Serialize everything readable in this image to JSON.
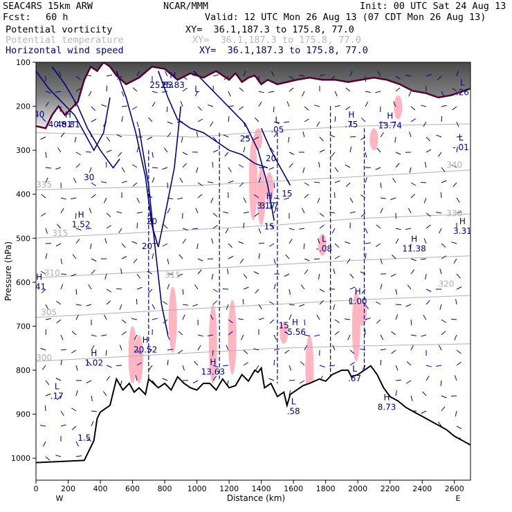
{
  "header": {
    "model": "SEAC4RS 15km ARW",
    "org": "NCAR/MMM",
    "init": "Init: 00 UTC Sat 24 Aug 13",
    "fcst_label": "Fcst:",
    "fcst_value": "60 h",
    "valid": "Valid: 12 UTC Mon 26 Aug 13 (07 CDT Mon 26 Aug 13)"
  },
  "fields": [
    {
      "name": "Potential vorticity",
      "xy": "XY=  36.1,187.3 to 175.8, 77.0"
    },
    {
      "name": "Potential temperature",
      "xy": "XY=  36.1,187.3 to 175.8, 77.0"
    },
    {
      "name": "Horizontal wind speed",
      "xy": "XY=  36.1,187.3 to 175.8, 77.0"
    }
  ],
  "colors": {
    "pv_fill": "#ffb6c1",
    "theta": "#b0b0b0",
    "wind_speed": "#000080",
    "vectors": "#00008b",
    "tropopause": "#550033",
    "terrain": "#000000",
    "stratosphere_dark": "#303030"
  },
  "chart_data": {
    "type": "line",
    "title": "",
    "xlabel": "Distance (km)",
    "ylabel": "Pressure (hPa)",
    "xlim": [
      0,
      2700
    ],
    "ylim": [
      1050,
      100
    ],
    "x_ticks": [
      0,
      200,
      400,
      600,
      800,
      1000,
      1200,
      1400,
      1600,
      1800,
      2000,
      2200,
      2400,
      2600
    ],
    "x_tick_labels": [
      "0",
      "200",
      "400",
      "600",
      "800",
      "1000",
      "1200",
      "1400",
      "1600",
      "1800",
      "2000",
      "2200",
      "2400",
      "2600"
    ],
    "y_ticks": [
      100,
      200,
      300,
      400,
      500,
      600,
      700,
      800,
      900,
      1000
    ],
    "y_tick_labels": [
      "100",
      "200",
      "300",
      "400",
      "500",
      "600",
      "700",
      "800",
      "900",
      "1000"
    ],
    "x_end_labels": {
      "left": "W",
      "right": "E"
    },
    "terrain": {
      "x": [
        0,
        300,
        360,
        380,
        400,
        460,
        500,
        540,
        580,
        610,
        640,
        680,
        700,
        760,
        800,
        840,
        880,
        920,
        960,
        1000,
        1040,
        1080,
        1120,
        1160,
        1200,
        1240,
        1280,
        1320,
        1360,
        1380,
        1400,
        1420,
        1460,
        1500,
        1540,
        1560,
        1580,
        1620,
        1660,
        1700,
        1760,
        1800,
        1840,
        1900,
        1940,
        1960,
        2000,
        2040,
        2080,
        2120,
        2160,
        2200,
        2250,
        2300,
        2350,
        2400,
        2450,
        2500,
        2550,
        2600,
        2650,
        2700
      ],
      "y": [
        1010,
        1005,
        960,
        910,
        895,
        880,
        820,
        845,
        830,
        850,
        840,
        855,
        820,
        840,
        830,
        845,
        815,
        830,
        840,
        845,
        830,
        830,
        845,
        820,
        840,
        835,
        810,
        825,
        800,
        805,
        795,
        840,
        830,
        860,
        850,
        880,
        855,
        845,
        835,
        830,
        820,
        825,
        810,
        800,
        800,
        815,
        810,
        800,
        790,
        810,
        840,
        860,
        870,
        885,
        895,
        905,
        915,
        925,
        935,
        950,
        960,
        970
      ]
    },
    "tropopause": {
      "x": [
        0,
        60,
        100,
        140,
        180,
        220,
        260,
        300,
        340,
        380,
        420,
        460,
        500,
        560,
        640,
        720,
        800,
        880,
        960,
        1040,
        1120,
        1200,
        1240,
        1280,
        1320,
        1360,
        1400,
        1440,
        1500,
        1560,
        1620,
        1700,
        1780,
        1860,
        1940,
        2020,
        2100,
        2180,
        2260,
        2340,
        2420,
        2500,
        2580,
        2700
      ],
      "y": [
        245,
        250,
        220,
        200,
        220,
        205,
        190,
        140,
        110,
        120,
        100,
        110,
        130,
        150,
        135,
        110,
        115,
        140,
        125,
        135,
        120,
        140,
        125,
        145,
        135,
        130,
        150,
        140,
        150,
        145,
        140,
        135,
        140,
        140,
        145,
        140,
        135,
        140,
        150,
        165,
        170,
        180,
        175,
        160
      ]
    },
    "theta_labels": [
      {
        "text": "340",
        "x": 2600,
        "y": 340
      },
      {
        "text": "335",
        "x": 50,
        "y": 385
      },
      {
        "text": "330",
        "x": 2600,
        "y": 450
      },
      {
        "text": "320",
        "x": 2550,
        "y": 610
      },
      {
        "text": "315",
        "x": 150,
        "y": 495
      },
      {
        "text": "315",
        "x": 850,
        "y": 590
      },
      {
        "text": "310",
        "x": 100,
        "y": 585
      },
      {
        "text": "305",
        "x": 80,
        "y": 675
      },
      {
        "text": "300",
        "x": 50,
        "y": 778
      }
    ],
    "theta_levels": [
      {
        "x": [
          0,
          500,
          1000,
          1500,
          2000,
          2700
        ],
        "y": [
          780,
          770,
          760,
          750,
          745,
          740
        ]
      },
      {
        "x": [
          0,
          500,
          1000,
          1500,
          2000,
          2700
        ],
        "y": [
          680,
          670,
          660,
          650,
          640,
          630
        ]
      },
      {
        "x": [
          0,
          500,
          1000,
          1500,
          2000,
          2700
        ],
        "y": [
          590,
          580,
          570,
          560,
          550,
          540
        ]
      },
      {
        "x": [
          0,
          500,
          1000,
          1500,
          2000,
          2700
        ],
        "y": [
          500,
          490,
          480,
          470,
          455,
          445
        ]
      },
      {
        "x": [
          0,
          500,
          1000,
          1500,
          2000,
          2700
        ],
        "y": [
          390,
          385,
          380,
          370,
          360,
          345
        ]
      },
      {
        "x": [
          0,
          500,
          1000,
          1500,
          2000,
          2700
        ],
        "y": [
          260,
          265,
          270,
          255,
          245,
          240
        ]
      }
    ],
    "wind_speed_labels": [
      {
        "text": "40",
        "x": 20,
        "y": 225
      },
      {
        "text": "40.81",
        "x": 150,
        "y": 248
      },
      {
        "text": "30",
        "x": 330,
        "y": 368
      },
      {
        "text": "20",
        "x": 720,
        "y": 468
      },
      {
        "text": "20",
        "x": 690,
        "y": 525
      },
      {
        "text": "25.83",
        "x": 780,
        "y": 158
      },
      {
        "text": "25",
        "x": 1300,
        "y": 280
      },
      {
        "text": "20",
        "x": 1460,
        "y": 325
      },
      {
        "text": "15",
        "x": 1560,
        "y": 405
      },
      {
        "text": "15",
        "x": 1450,
        "y": 480
      },
      {
        "text": "3.17",
        "x": 1430,
        "y": 433
      },
      {
        "text": "15",
        "x": 1540,
        "y": 705
      }
    ],
    "extrema_labels": [
      {
        "mark": "H",
        "text": "40.81",
        "x": 200,
        "y": 248
      },
      {
        "mark": "H",
        "text": "25.83",
        "x": 850,
        "y": 158
      },
      {
        "mark": "L",
        "text": "",
        "x": 1000,
        "y": 190
      },
      {
        "mark": "L",
        "text": ".05",
        "x": 1500,
        "y": 260
      },
      {
        "mark": "H",
        "text": "3.17",
        "x": 1450,
        "y": 433
      },
      {
        "mark": "H",
        "text": "1.52",
        "x": 280,
        "y": 475
      },
      {
        "mark": "L",
        "text": "-.08",
        "x": 1790,
        "y": 530
      },
      {
        "mark": "H",
        "text": ".41",
        "x": 20,
        "y": 617
      },
      {
        "mark": "H",
        "text": "11.38",
        "x": 2350,
        "y": 530
      },
      {
        "mark": "H",
        "text": "1.00",
        "x": 2000,
        "y": 650
      },
      {
        "mark": "H",
        "text": "-5.56",
        "x": 1610,
        "y": 720
      },
      {
        "mark": "H",
        "text": "20.52",
        "x": 680,
        "y": 760
      },
      {
        "mark": "H",
        "text": "1.02",
        "x": 360,
        "y": 790
      },
      {
        "mark": "H",
        "text": "13.63",
        "x": 1100,
        "y": 810
      },
      {
        "mark": "L",
        "text": ".17",
        "x": 130,
        "y": 865
      },
      {
        "mark": "H",
        "text": ".75",
        "x": 1960,
        "y": 248
      },
      {
        "mark": "H",
        "text": "13.74",
        "x": 2200,
        "y": 250
      },
      {
        "mark": "L",
        "text": "-.01",
        "x": 2640,
        "y": 300
      },
      {
        "mark": "L",
        "text": ".26",
        "x": 2650,
        "y": 175
      },
      {
        "mark": "H",
        "text": "3.31",
        "x": 2650,
        "y": 490
      },
      {
        "mark": "L",
        "text": ".67",
        "x": 1980,
        "y": 825
      },
      {
        "mark": "H",
        "text": "8.73",
        "x": 2180,
        "y": 890
      },
      {
        "mark": "L",
        "text": ".58",
        "x": 1600,
        "y": 900
      },
      {
        "mark": "",
        "text": "1.5",
        "x": 300,
        "y": 960
      }
    ]
  }
}
